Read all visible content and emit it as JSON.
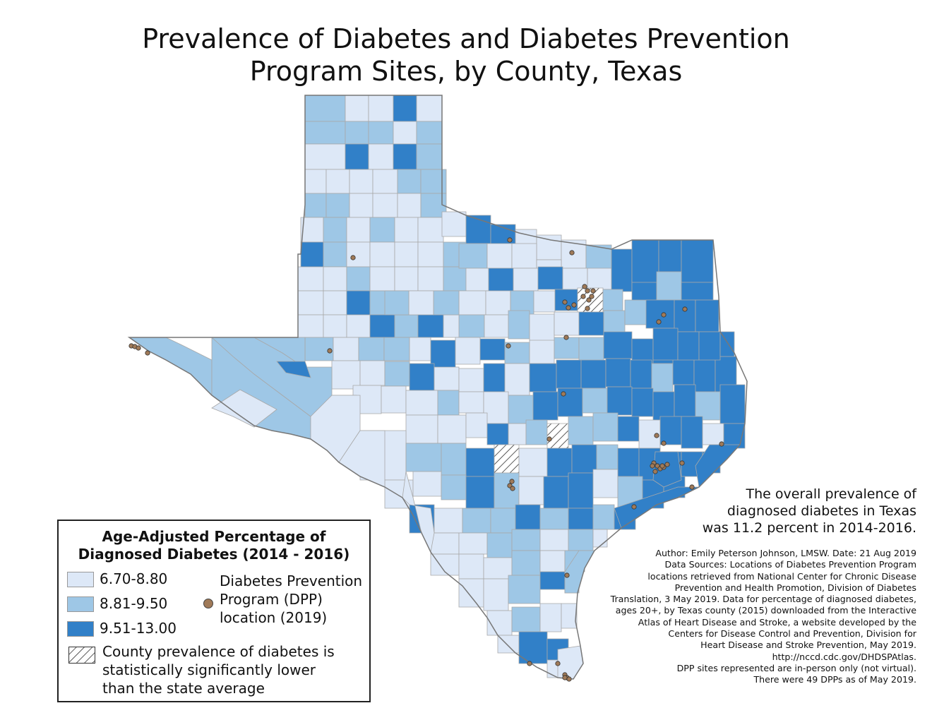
{
  "title": {
    "line1": "Prevalence of Diabetes and Diabetes Prevention",
    "line2": "Program Sites, by County, Texas"
  },
  "colors": {
    "low": "#dde8f7",
    "mid": "#9ec7e6",
    "high": "#3180c8",
    "dpp_point": "#a07a58",
    "county_border": "#a8a8a8"
  },
  "legend": {
    "title_line1": "Age-Adjusted Percentage of",
    "title_line2": "Diagnosed Diabetes (2014 - 2016)",
    "classes": [
      {
        "label": "6.70-8.80",
        "color_key": "low"
      },
      {
        "label": "8.81-9.50",
        "color_key": "mid"
      },
      {
        "label": "9.51-13.00",
        "color_key": "high"
      }
    ],
    "dpp_line1": "Diabetes Prevention",
    "dpp_line2": "Program (DPP)",
    "dpp_line3": "location (2019)",
    "hatch_line1": "County prevalence of diabetes is",
    "hatch_line2": "statistically significantly lower",
    "hatch_line3": "than the state average"
  },
  "overall_note": {
    "line1": "The overall prevalence of",
    "line2": "diagnosed diabetes in Texas",
    "line3": "was 11.2 percent in 2014-2016."
  },
  "credits": [
    "Author: Emily Peterson Johnson, LMSW. Date: 21 Aug 2019",
    "Data Sources: Locations of Diabetes Prevention Program",
    "locations retrieved from National Center for Chronic Disease",
    "Prevention and Health Promotion, Division of Diabetes",
    "Translation, 3 May 2019. Data for percentage of diagnosed diabetes,",
    "ages 20+, by Texas county (2015) downloaded from the Interactive",
    "Atlas of Heart Disease and Stroke, a website developed by the",
    "Centers for Disease Control and Prevention, Division for",
    "Heart Disease and Stroke Prevention, May 2019.",
    "http://nccd.cdc.gov/DHDSPAtlas.",
    "DPP sites represented are in-person only (not virtual).",
    "There were 49 DPPs as of May 2019."
  ]
}
